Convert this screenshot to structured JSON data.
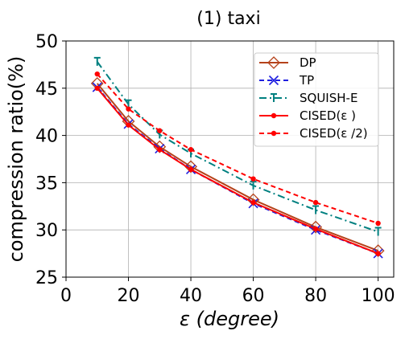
{
  "chart_data": {
    "type": "line",
    "title": "(1) taxi",
    "xlabel_symbol": "ε",
    "xlabel_unit": "(degree)",
    "ylabel": "compression ratio(%)",
    "xlim": [
      0,
      105
    ],
    "ylim": [
      25,
      50
    ],
    "xticks": [
      0,
      20,
      40,
      60,
      80,
      100
    ],
    "yticks": [
      25,
      30,
      35,
      40,
      45,
      50
    ],
    "grid": true,
    "legend_position": "top-right",
    "x": [
      10,
      20,
      30,
      40,
      60,
      80,
      100
    ],
    "series": [
      {
        "name": "DP",
        "color": "#b5421a",
        "marker": "diamond-open",
        "line": "solid",
        "values": [
          45.5,
          41.5,
          38.8,
          36.7,
          33.2,
          30.3,
          27.8
        ]
      },
      {
        "name": "TP",
        "color": "#1f1fe0",
        "marker": "x",
        "line": "dashed",
        "values": [
          45.1,
          41.2,
          38.6,
          36.4,
          32.8,
          30.0,
          27.5
        ]
      },
      {
        "name": "SQUISH-E",
        "color": "#008080",
        "marker": "tee",
        "line": "dashdot",
        "values": [
          47.8,
          43.3,
          40.1,
          38.1,
          34.7,
          32.1,
          29.8
        ]
      },
      {
        "name": "CISED(ε )",
        "color": "#ff0000",
        "marker": "dot",
        "line": "solid",
        "values": [
          45.0,
          41.1,
          38.5,
          36.4,
          32.9,
          30.1,
          27.5
        ]
      },
      {
        "name": "CISED(ε /2)",
        "color": "#ff0000",
        "marker": "dot",
        "line": "dashed",
        "values": [
          46.5,
          42.8,
          40.5,
          38.5,
          35.4,
          32.9,
          30.7
        ]
      }
    ]
  }
}
